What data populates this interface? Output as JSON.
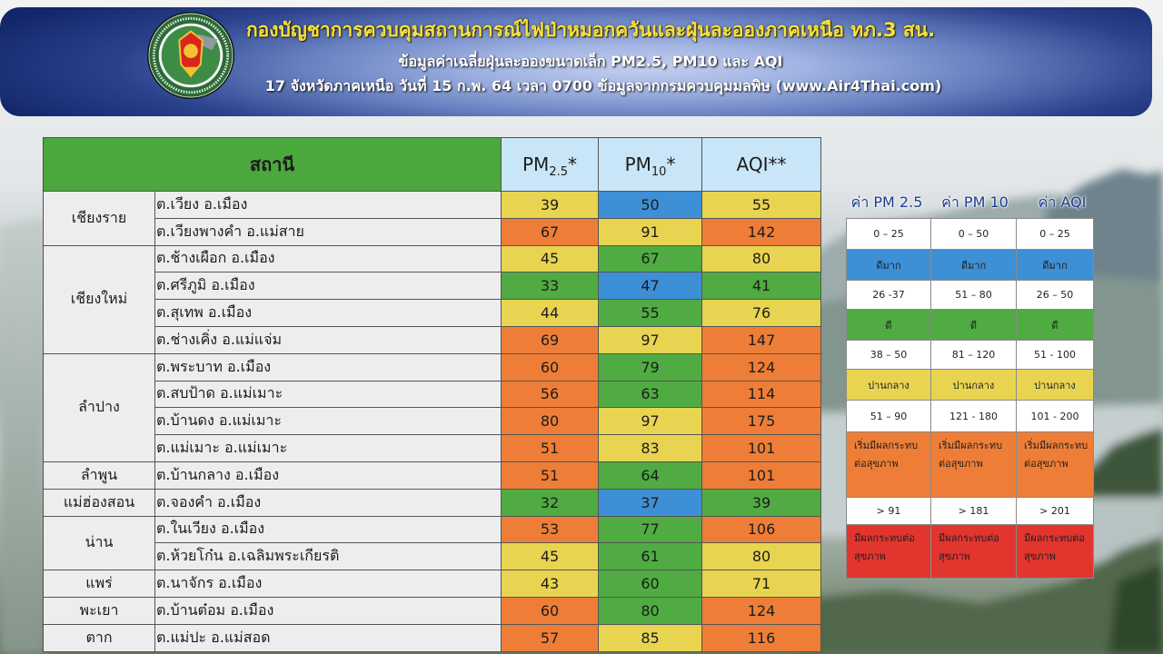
{
  "header": {
    "title": "กองบัญชาการควบคุมสถานการณ์ไฟป่าหมอกควันและฝุ่นละอองภาคเหนือ ทภ.3 สน.",
    "subtitle": "ข้อมูลค่าเฉลี่ยฝุ่นละอองขนาดเล็ก PM2.5, PM10 และ AQI",
    "info": "17 จังหวัดภาคเหนือ วันที่ 15 ก.พ. 64 เวลา 0700 ข้อมูลจากกรมควบคุมมลพิษ (www.Air4Thai.com)",
    "logo_icon": "military-command-emblem"
  },
  "colors": {
    "title_text": "#f6e13b",
    "station_header": "#4aa83c",
    "value_header": "#c9e6f8",
    "station_cell": "#ededed"
  },
  "table": {
    "columns": {
      "station": "สถานี",
      "pm25": {
        "base": "PM",
        "sub": "2.5",
        "mark": "*"
      },
      "pm10": {
        "base": "PM",
        "sub": "10",
        "mark": "*"
      },
      "aqi": "AQI**"
    },
    "provinces": [
      {
        "name": "เชียงราย",
        "stations": [
          {
            "location": "ต.เวียง อ.เมือง",
            "pm25": {
              "value": 39,
              "color": "#e8d450"
            },
            "pm10": {
              "value": 50,
              "color": "#3d8fd6"
            },
            "aqi": {
              "value": 55,
              "color": "#e8d450"
            }
          },
          {
            "location": "ต.เวียงพางคำ อ.แม่สาย",
            "pm25": {
              "value": 67,
              "color": "#ee7e37"
            },
            "pm10": {
              "value": 91,
              "color": "#e8d450"
            },
            "aqi": {
              "value": 142,
              "color": "#ee7e37"
            }
          }
        ]
      },
      {
        "name": "เชียงใหม่",
        "stations": [
          {
            "location": "ต.ช้างเผือก อ.เมือง",
            "pm25": {
              "value": 45,
              "color": "#e8d450"
            },
            "pm10": {
              "value": 67,
              "color": "#4fab42"
            },
            "aqi": {
              "value": 80,
              "color": "#e8d450"
            }
          },
          {
            "location": "ต.ศรีภูมิ อ.เมือง",
            "pm25": {
              "value": 33,
              "color": "#4fab42"
            },
            "pm10": {
              "value": 47,
              "color": "#3d8fd6"
            },
            "aqi": {
              "value": 41,
              "color": "#4fab42"
            }
          },
          {
            "location": "ต.สุเทพ อ.เมือง",
            "pm25": {
              "value": 44,
              "color": "#e8d450"
            },
            "pm10": {
              "value": 55,
              "color": "#4fab42"
            },
            "aqi": {
              "value": 76,
              "color": "#e8d450"
            }
          },
          {
            "location": "ต.ช่างเคิ่ง อ.แม่แจ่ม",
            "pm25": {
              "value": 69,
              "color": "#ee7e37"
            },
            "pm10": {
              "value": 97,
              "color": "#e8d450"
            },
            "aqi": {
              "value": 147,
              "color": "#ee7e37"
            }
          }
        ]
      },
      {
        "name": "ลำปาง",
        "stations": [
          {
            "location": "ต.พระบาท อ.เมือง",
            "pm25": {
              "value": 60,
              "color": "#ee7e37"
            },
            "pm10": {
              "value": 79,
              "color": "#4fab42"
            },
            "aqi": {
              "value": 124,
              "color": "#ee7e37"
            }
          },
          {
            "location": "ต.สบป้าด อ.แม่เมาะ",
            "pm25": {
              "value": 56,
              "color": "#ee7e37"
            },
            "pm10": {
              "value": 63,
              "color": "#4fab42"
            },
            "aqi": {
              "value": 114,
              "color": "#ee7e37"
            }
          },
          {
            "location": "ต.บ้านดง อ.แม่เมาะ",
            "pm25": {
              "value": 80,
              "color": "#ee7e37"
            },
            "pm10": {
              "value": 97,
              "color": "#e8d450"
            },
            "aqi": {
              "value": 175,
              "color": "#ee7e37"
            }
          },
          {
            "location": "ต.แม่เมาะ อ.แม่เมาะ",
            "pm25": {
              "value": 51,
              "color": "#ee7e37"
            },
            "pm10": {
              "value": 83,
              "color": "#e8d450"
            },
            "aqi": {
              "value": 101,
              "color": "#ee7e37"
            }
          }
        ]
      },
      {
        "name": "ลำพูน",
        "stations": [
          {
            "location": "ต.บ้านกลาง อ.เมือง",
            "pm25": {
              "value": 51,
              "color": "#ee7e37"
            },
            "pm10": {
              "value": 64,
              "color": "#4fab42"
            },
            "aqi": {
              "value": 101,
              "color": "#ee7e37"
            }
          }
        ]
      },
      {
        "name": "แม่ฮ่องสอน",
        "stations": [
          {
            "location": "ต.จองคำ อ.เมือง",
            "pm25": {
              "value": 32,
              "color": "#4fab42"
            },
            "pm10": {
              "value": 37,
              "color": "#3d8fd6"
            },
            "aqi": {
              "value": 39,
              "color": "#4fab42"
            }
          }
        ]
      },
      {
        "name": "น่าน",
        "stations": [
          {
            "location": "ต.ในเวียง อ.เมือง",
            "pm25": {
              "value": 53,
              "color": "#ee7e37"
            },
            "pm10": {
              "value": 77,
              "color": "#4fab42"
            },
            "aqi": {
              "value": 106,
              "color": "#ee7e37"
            }
          },
          {
            "location": "ต.ห้วยโก๋น อ.เฉลิมพระเกียรติ",
            "pm25": {
              "value": 45,
              "color": "#e8d450"
            },
            "pm10": {
              "value": 61,
              "color": "#4fab42"
            },
            "aqi": {
              "value": 80,
              "color": "#e8d450"
            }
          }
        ]
      },
      {
        "name": "แพร่",
        "stations": [
          {
            "location": "ต.นาจักร อ.เมือง",
            "pm25": {
              "value": 43,
              "color": "#e8d450"
            },
            "pm10": {
              "value": 60,
              "color": "#4fab42"
            },
            "aqi": {
              "value": 71,
              "color": "#e8d450"
            }
          }
        ]
      },
      {
        "name": "พะเยา",
        "stations": [
          {
            "location": "ต.บ้านต๋อม อ.เมือง",
            "pm25": {
              "value": 60,
              "color": "#ee7e37"
            },
            "pm10": {
              "value": 80,
              "color": "#4fab42"
            },
            "aqi": {
              "value": 124,
              "color": "#ee7e37"
            }
          }
        ]
      },
      {
        "name": "ตาก",
        "stations": [
          {
            "location": "ต.แม่ปะ อ.แม่สอด",
            "pm25": {
              "value": 57,
              "color": "#ee7e37"
            },
            "pm10": {
              "value": 85,
              "color": "#e8d450"
            },
            "aqi": {
              "value": 116,
              "color": "#ee7e37"
            }
          }
        ]
      }
    ]
  },
  "legend": {
    "headers": [
      "ค่า PM 2.5",
      "ค่า PM 10",
      "ค่า AQI"
    ],
    "rows": [
      {
        "color": "#ffffff",
        "cells": [
          "0 – 25",
          "0 – 50",
          "0 – 25"
        ]
      },
      {
        "color": "#3d8fd6",
        "cells": [
          "ดีมาก",
          "ดีมาก",
          "ดีมาก"
        ]
      },
      {
        "color": "#ffffff",
        "cells": [
          "26 -37",
          "51 – 80",
          "26 – 50"
        ]
      },
      {
        "color": "#4fab42",
        "cells": [
          "ดี",
          "ดี",
          "ดี"
        ]
      },
      {
        "color": "#ffffff",
        "cells": [
          "38 – 50",
          "81 – 120",
          "51 - 100"
        ]
      },
      {
        "color": "#e8d450",
        "cells": [
          "ปานกลาง",
          "ปานกลาง",
          "ปานกลาง"
        ]
      },
      {
        "color": "#ffffff",
        "cells": [
          "51 – 90",
          "121 - 180",
          "101 - 200"
        ]
      },
      {
        "color": "#ee7e37",
        "cells": [
          "เริ่มมีผลกระทบต่อสุขภาพ",
          "เริ่มมีผลกระทบต่อสุขภาพ",
          "เริ่มมีผลกระทบต่อสุขภาพ"
        ]
      },
      {
        "color": "#ffffff",
        "cells": [
          "> 91",
          "> 181",
          "> 201"
        ]
      },
      {
        "color": "#e2352e",
        "cells": [
          "มีผลกระทบต่อสุขภาพ",
          "มีผลกระทบต่อสุขภาพ",
          "มีผลกระทบต่อสุขภาพ"
        ]
      }
    ]
  }
}
